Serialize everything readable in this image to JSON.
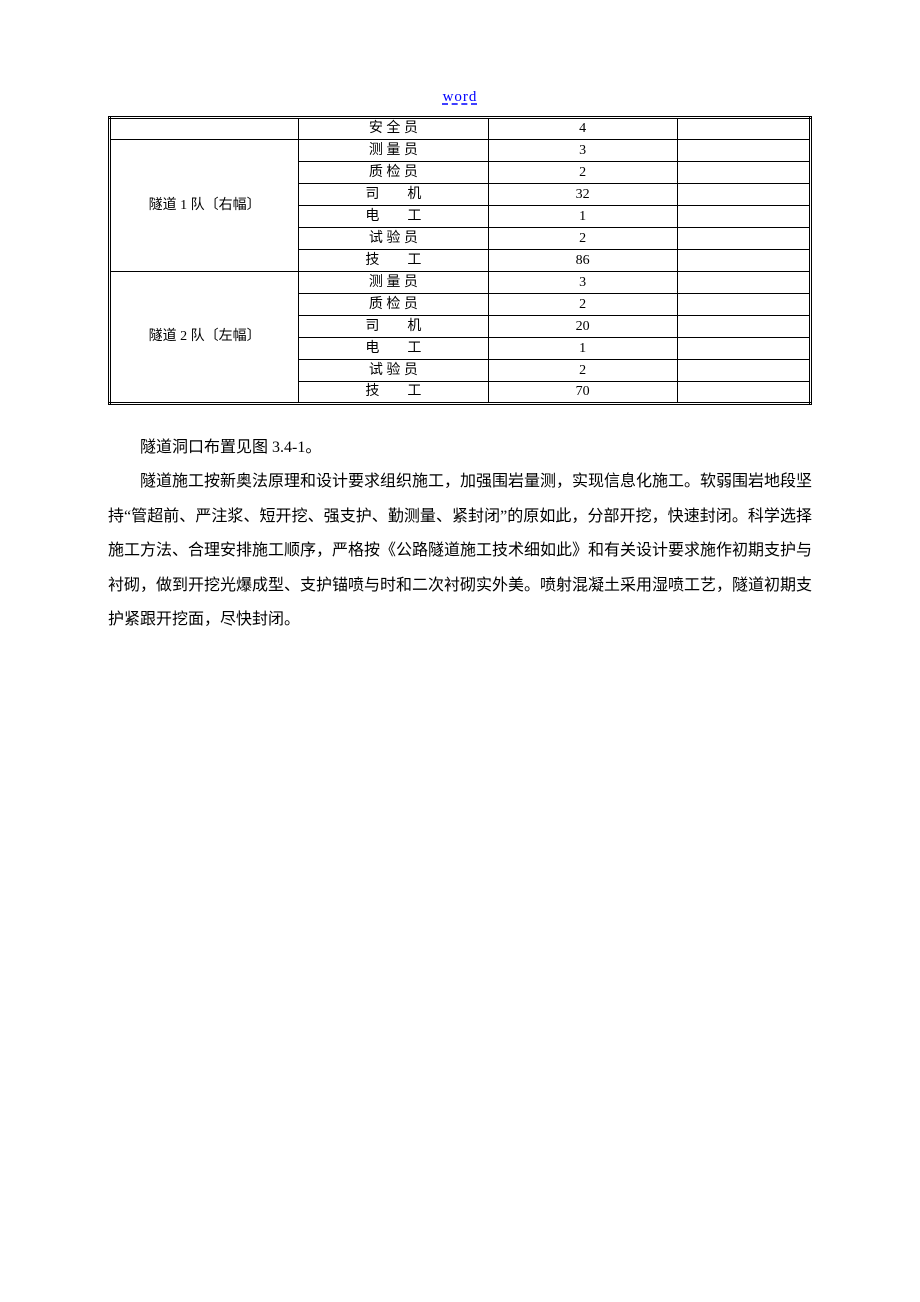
{
  "header": {
    "link_text": "word",
    "link_color": "#0000ff"
  },
  "table": {
    "columns": [
      "team",
      "role",
      "count",
      "note"
    ],
    "column_widths_percent": [
      27,
      27,
      27,
      19
    ],
    "border_color": "#000000",
    "outer_border_style": "double",
    "cell_fontsize": 14,
    "groups": [
      {
        "team": "",
        "rows": [
          {
            "role": "安 全 员",
            "count": "4",
            "note": ""
          }
        ]
      },
      {
        "team": "隧道 1 队〔右幅〕",
        "rows": [
          {
            "role": "测 量 员",
            "count": "3",
            "note": ""
          },
          {
            "role": "质 检 员",
            "count": "2",
            "note": ""
          },
          {
            "role": "司　　机",
            "count": "32",
            "note": ""
          },
          {
            "role": "电　　工",
            "count": "1",
            "note": ""
          },
          {
            "role": "试 验 员",
            "count": "2",
            "note": ""
          },
          {
            "role": "技　　工",
            "count": "86",
            "note": ""
          }
        ]
      },
      {
        "team": "隧道 2 队〔左幅〕",
        "rows": [
          {
            "role": "测 量 员",
            "count": "3",
            "note": ""
          },
          {
            "role": "质 检 员",
            "count": "2",
            "note": ""
          },
          {
            "role": "司　　机",
            "count": "20",
            "note": ""
          },
          {
            "role": "电　　工",
            "count": "1",
            "note": ""
          },
          {
            "role": "试 验 员",
            "count": "2",
            "note": ""
          },
          {
            "role": "技　　工",
            "count": "70",
            "note": ""
          }
        ]
      }
    ]
  },
  "body": {
    "fontsize": 16,
    "line_height": 2.15,
    "text_color": "#000000",
    "p1": "隧道洞口布置见图 3.4-1。",
    "p2": "隧道施工按新奥法原理和设计要求组织施工，加强围岩量测，实现信息化施工。软弱围岩地段坚持“管超前、严注浆、短开挖、强支护、勤测量、紧封闭”的原如此，分部开挖，快速封闭。科学选择施工方法、合理安排施工顺序，严格按《公路隧道施工技术细如此》和有关设计要求施作初期支护与衬砌，做到开挖光爆成型、支护锚喷与时和二次衬砌实外美。喷射混凝土采用湿喷工艺，隧道初期支护紧跟开挖面，尽快封闭。"
  }
}
